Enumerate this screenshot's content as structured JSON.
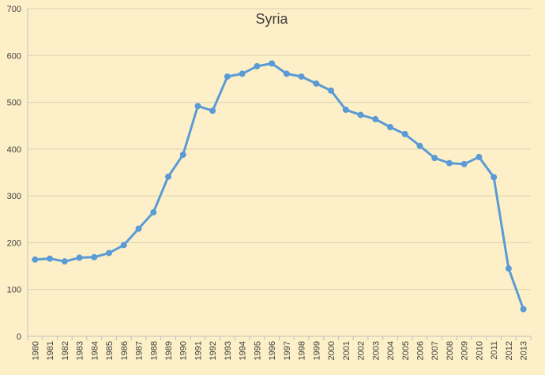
{
  "chart_data": {
    "type": "line",
    "title": "Syria",
    "xlabel": "",
    "ylabel": "",
    "ylim": [
      0,
      700
    ],
    "yticks": [
      0,
      100,
      200,
      300,
      400,
      500,
      600,
      700
    ],
    "grid": true,
    "legend": "none",
    "categories": [
      "1980",
      "1981",
      "1982",
      "1983",
      "1984",
      "1985",
      "1986",
      "1987",
      "1988",
      "1989",
      "1990",
      "1991",
      "1992",
      "1993",
      "1994",
      "1995",
      "1996",
      "1997",
      "1998",
      "1999",
      "2000",
      "2001",
      "2002",
      "2003",
      "2004",
      "2005",
      "2006",
      "2007",
      "2008",
      "2009",
      "2010",
      "2011",
      "2012",
      "2013"
    ],
    "series": [
      {
        "values": [
          164,
          166,
          160,
          168,
          169,
          178,
          195,
          230,
          265,
          341,
          388,
          492,
          482,
          555,
          561,
          577,
          583,
          561,
          555,
          540,
          525,
          484,
          473,
          464,
          447,
          432,
          407,
          381,
          370,
          368,
          383,
          340,
          145,
          58
        ],
        "color": "#5b9bd5"
      }
    ]
  },
  "style": {
    "background": "#fdf0c8",
    "gridline_color": "#dcd2b0",
    "line_color": "#5b9bd5",
    "text_color": "#404040"
  }
}
